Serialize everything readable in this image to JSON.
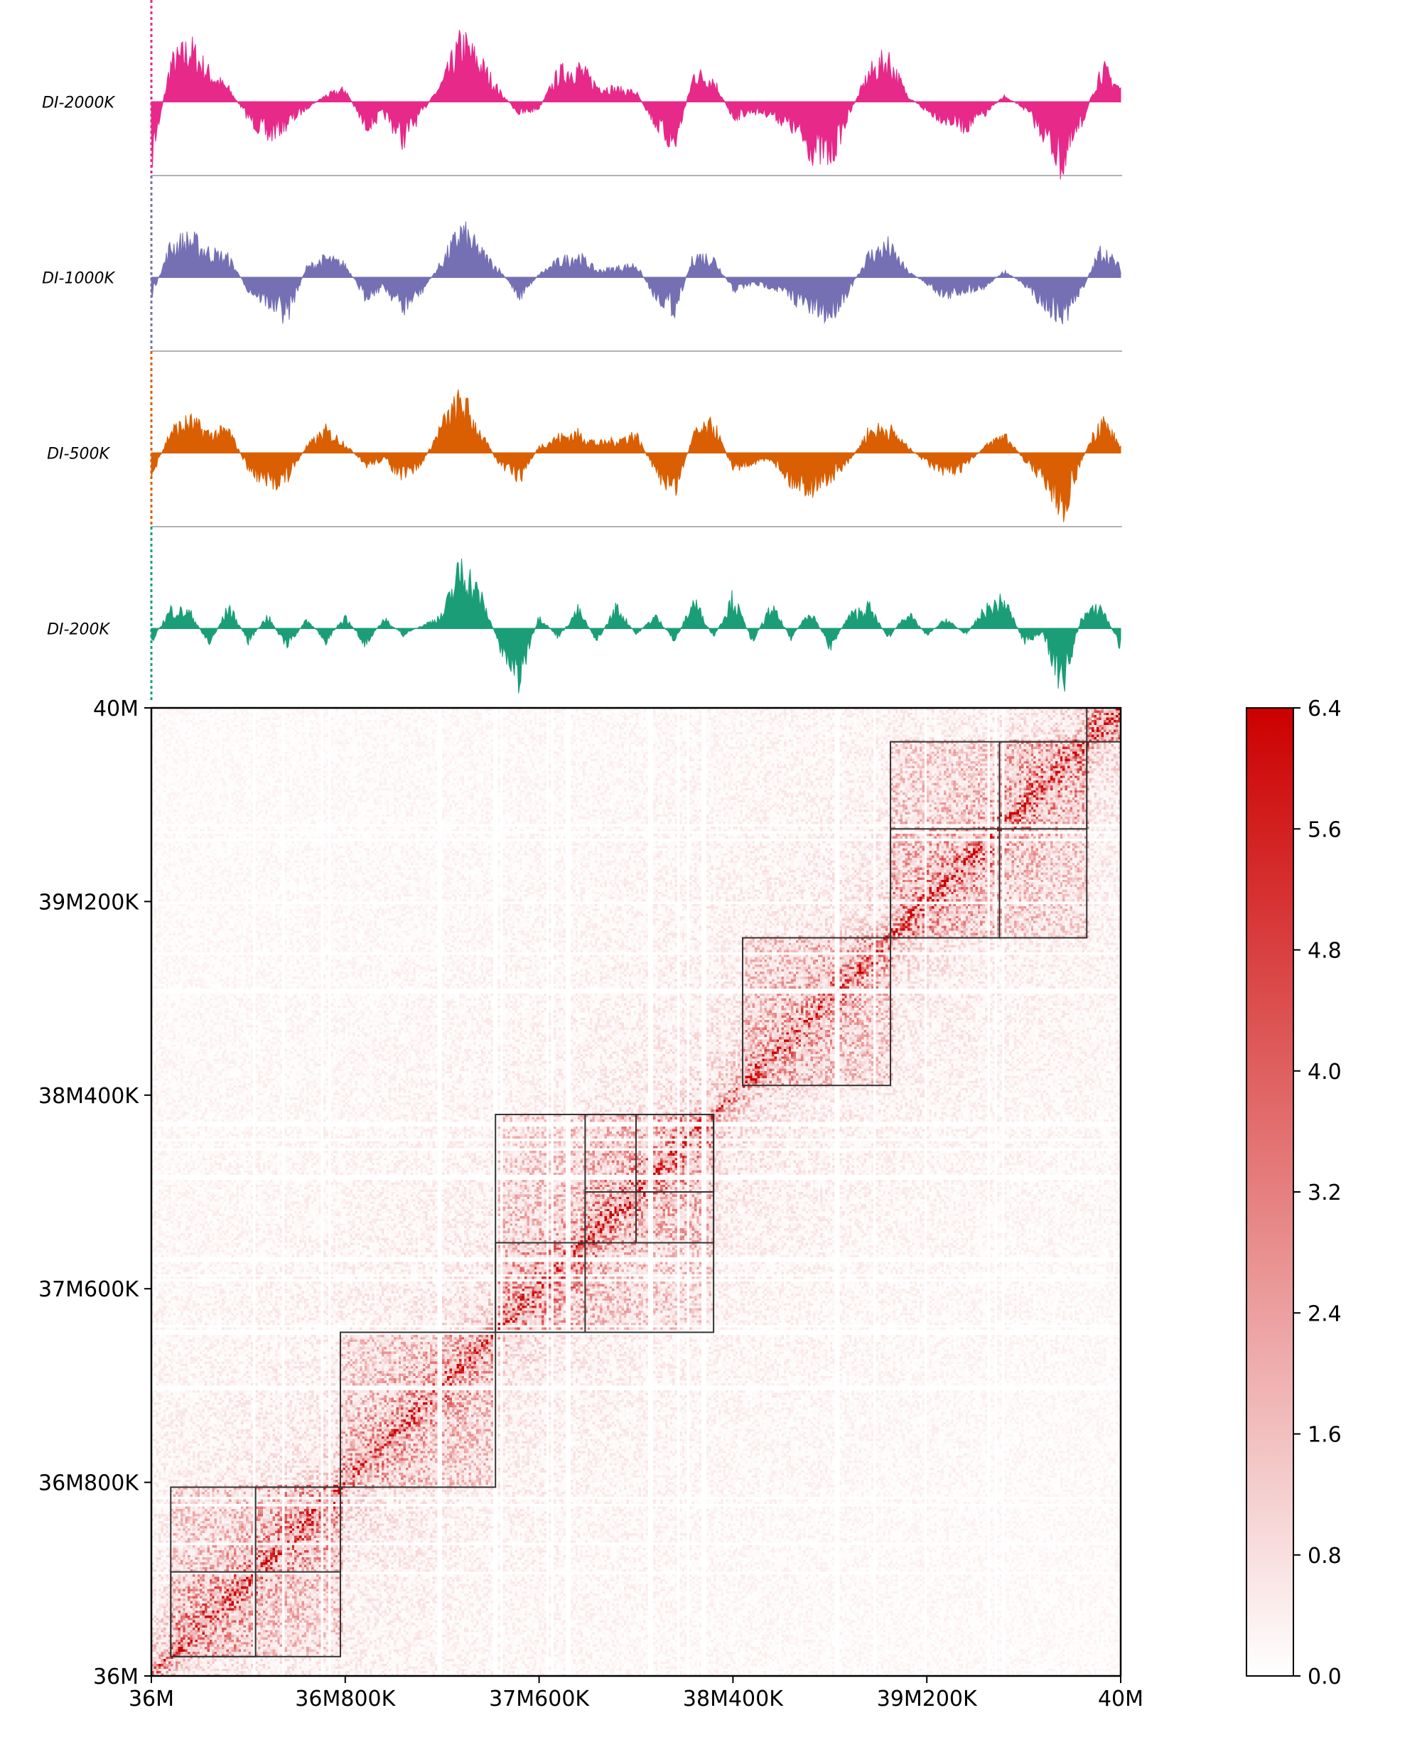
{
  "chart_data": [
    {
      "type": "area",
      "panel": "directionality-index tracks",
      "region": {
        "start": 36000000,
        "end": 40000000
      },
      "tracks": [
        {
          "name": "DI-2000K",
          "color": "#e7298a",
          "x": [
            36000000,
            36080000,
            36160000,
            36240000,
            36320000,
            36400000,
            36480000,
            36560000,
            36640000,
            36720000,
            36800000,
            36880000,
            36960000,
            37040000,
            37120000,
            37200000,
            37280000,
            37360000,
            37440000,
            37520000,
            37600000,
            37680000,
            37760000,
            37840000,
            37920000,
            38000000,
            38080000,
            38160000,
            38240000,
            38320000,
            38400000,
            38480000,
            38560000,
            38640000,
            38720000,
            38800000,
            38880000,
            38960000,
            39040000,
            39120000,
            39200000,
            39280000,
            39360000,
            39440000,
            39520000,
            39600000,
            39680000,
            39760000,
            39840000,
            39920000,
            40000000
          ],
          "values": [
            -0.9,
            0.6,
            0.85,
            0.45,
            0.2,
            -0.25,
            -0.55,
            -0.35,
            -0.1,
            0.1,
            0.2,
            -0.4,
            -0.2,
            -0.6,
            -0.15,
            0.3,
            0.95,
            0.6,
            0.15,
            -0.2,
            -0.1,
            0.45,
            0.55,
            0.25,
            0.2,
            0.15,
            -0.35,
            -0.7,
            0.45,
            0.35,
            -0.25,
            -0.15,
            -0.2,
            -0.4,
            -0.75,
            -0.9,
            -0.2,
            0.45,
            0.7,
            0.1,
            -0.15,
            -0.3,
            -0.4,
            -0.2,
            0.1,
            -0.1,
            -0.5,
            -1.0,
            -0.35,
            0.55,
            0.2
          ]
        },
        {
          "name": "DI-1000K",
          "color": "#7570b3",
          "x": [
            36000000,
            36080000,
            36160000,
            36240000,
            36320000,
            36400000,
            36480000,
            36560000,
            36640000,
            36720000,
            36800000,
            36880000,
            36960000,
            37040000,
            37120000,
            37200000,
            37280000,
            37360000,
            37440000,
            37520000,
            37600000,
            37680000,
            37760000,
            37840000,
            37920000,
            38000000,
            38080000,
            38160000,
            38240000,
            38320000,
            38400000,
            38480000,
            38560000,
            38640000,
            38720000,
            38800000,
            38880000,
            38960000,
            39040000,
            39120000,
            39200000,
            39280000,
            39360000,
            39440000,
            39520000,
            39600000,
            39680000,
            39760000,
            39840000,
            39920000,
            40000000
          ],
          "values": [
            -0.3,
            0.5,
            0.6,
            0.4,
            0.3,
            -0.2,
            -0.4,
            -0.6,
            0.15,
            0.3,
            0.2,
            -0.3,
            -0.15,
            -0.5,
            -0.2,
            0.25,
            0.75,
            0.4,
            0.1,
            -0.3,
            0.05,
            0.25,
            0.35,
            0.1,
            0.15,
            0.2,
            -0.3,
            -0.5,
            0.35,
            0.3,
            -0.2,
            -0.1,
            -0.15,
            -0.3,
            -0.5,
            -0.6,
            -0.2,
            0.35,
            0.5,
            0.1,
            -0.1,
            -0.3,
            -0.2,
            -0.15,
            0.1,
            -0.1,
            -0.4,
            -0.65,
            -0.2,
            0.45,
            0.15
          ]
        },
        {
          "name": "DI-500K",
          "color": "#d95f02",
          "x": [
            36000000,
            36080000,
            36160000,
            36240000,
            36320000,
            36400000,
            36480000,
            36560000,
            36640000,
            36720000,
            36800000,
            36880000,
            36960000,
            37040000,
            37120000,
            37200000,
            37280000,
            37360000,
            37440000,
            37520000,
            37600000,
            37680000,
            37760000,
            37840000,
            37920000,
            38000000,
            38080000,
            38160000,
            38240000,
            38320000,
            38400000,
            38480000,
            38560000,
            38640000,
            38720000,
            38800000,
            38880000,
            38960000,
            39040000,
            39120000,
            39200000,
            39280000,
            39360000,
            39440000,
            39520000,
            39600000,
            39680000,
            39760000,
            39840000,
            39920000,
            40000000
          ],
          "values": [
            -0.4,
            0.35,
            0.5,
            0.3,
            0.35,
            -0.25,
            -0.5,
            -0.4,
            0.1,
            0.35,
            0.15,
            -0.2,
            -0.1,
            -0.4,
            -0.15,
            0.45,
            0.85,
            0.3,
            -0.2,
            -0.4,
            0.1,
            0.25,
            0.3,
            0.15,
            0.2,
            0.3,
            -0.3,
            -0.6,
            0.3,
            0.45,
            -0.25,
            -0.15,
            -0.1,
            -0.45,
            -0.55,
            -0.4,
            -0.15,
            0.35,
            0.4,
            0.1,
            -0.15,
            -0.35,
            -0.2,
            0.1,
            0.3,
            -0.1,
            -0.4,
            -0.9,
            -0.1,
            0.55,
            0.1
          ]
        },
        {
          "name": "DI-200K",
          "color": "#1b9e77",
          "x": [
            36000000,
            36080000,
            36160000,
            36240000,
            36320000,
            36400000,
            36480000,
            36560000,
            36640000,
            36720000,
            36800000,
            36880000,
            36960000,
            37040000,
            37120000,
            37200000,
            37280000,
            37360000,
            37440000,
            37520000,
            37600000,
            37680000,
            37760000,
            37840000,
            37920000,
            38000000,
            38080000,
            38160000,
            38240000,
            38320000,
            38400000,
            38480000,
            38560000,
            38640000,
            38720000,
            38800000,
            38880000,
            38960000,
            39040000,
            39120000,
            39200000,
            39280000,
            39360000,
            39440000,
            39520000,
            39600000,
            39680000,
            39760000,
            39840000,
            39920000,
            40000000
          ],
          "values": [
            -0.2,
            0.3,
            0.25,
            -0.25,
            0.35,
            -0.2,
            0.2,
            -0.3,
            0.15,
            -0.2,
            0.2,
            -0.25,
            0.15,
            -0.1,
            0.05,
            0.2,
            1.0,
            0.5,
            -0.3,
            -0.8,
            0.2,
            -0.15,
            0.3,
            -0.2,
            0.35,
            -0.1,
            0.2,
            -0.2,
            0.45,
            -0.15,
            0.5,
            -0.2,
            0.35,
            -0.15,
            0.3,
            -0.3,
            0.2,
            0.35,
            -0.15,
            0.25,
            -0.1,
            0.15,
            -0.1,
            0.3,
            0.45,
            -0.2,
            -0.1,
            -0.9,
            0.2,
            0.35,
            -0.3
          ]
        }
      ]
    },
    {
      "type": "heatmap",
      "panel": "Hi-C contact matrix",
      "x_ticks": [
        "36M",
        "36M800K",
        "37M600K",
        "38M400K",
        "39M200K",
        "40M"
      ],
      "y_ticks": [
        "36M",
        "36M800K",
        "37M600K",
        "38M400K",
        "39M200K",
        "40M"
      ],
      "tick_values": [
        36000000,
        36800000,
        37600000,
        38400000,
        39200000,
        40000000
      ],
      "axis_range": [
        36000000,
        40000000
      ],
      "color_min": "#ffffff",
      "color_max": "#cc0000",
      "value_range": [
        0.0,
        6.4
      ],
      "colorbar_ticks": [
        "0.0",
        "0.8",
        "1.6",
        "2.4",
        "3.2",
        "4.0",
        "4.8",
        "5.6",
        "6.4"
      ],
      "domains": [
        {
          "start": 36080000,
          "end": 36780000
        },
        {
          "start": 36080000,
          "end": 36430000
        },
        {
          "start": 36430000,
          "end": 36780000
        },
        {
          "start": 36780000,
          "end": 37420000
        },
        {
          "start": 37420000,
          "end": 38320000
        },
        {
          "start": 37420000,
          "end": 37790000
        },
        {
          "start": 37790000,
          "end": 38320000
        },
        {
          "start": 37790000,
          "end": 38000000
        },
        {
          "start": 38000000,
          "end": 38320000
        },
        {
          "start": 38440000,
          "end": 39050000
        },
        {
          "start": 39050000,
          "end": 39860000
        },
        {
          "start": 39050000,
          "end": 39500000
        },
        {
          "start": 39500000,
          "end": 39860000
        },
        {
          "start": 39860000,
          "end": 40000000
        }
      ]
    }
  ]
}
